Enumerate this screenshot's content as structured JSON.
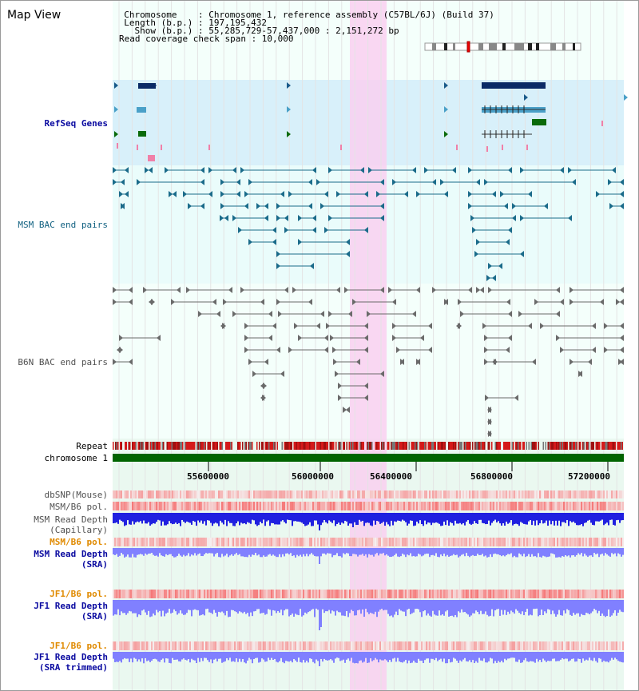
{
  "header": {
    "title": "Map View",
    "info_lines": [
      "  Chromosome    : Chromosome 1, reference assembly (C57BL/6J) (Build 37)",
      "  Length (b.p.) : 197,195,432",
      "    Show (b.p.) : 55,285,729-57,437,000 : 2,151,272 bp",
      "Read coverage check span : 10,000"
    ]
  },
  "tracks": {
    "refseq": "RefSeq Genes",
    "msm_bac": "MSM BAC end pairs",
    "b6n_bac": "B6N BAC end pairs",
    "repeat": "Repeat",
    "chromosome": "chromosome 1",
    "dbsnp": "dbSNP(Mouse)",
    "msm_b6_pol": "MSM/B6 pol.",
    "msm_depth_cap_1": "MSM Read Depth",
    "msm_depth_cap_2": "(Capillary)",
    "msm_b6_pol_2": "MSM/B6 pol.",
    "msm_depth_sra_1": "MSM Read Depth",
    "msm_depth_sra_2": "(SRA)",
    "jf1_pol_1": "JF1/B6 pol.",
    "jf1_depth_sra_1": "JF1 Read Depth",
    "jf1_depth_sra_2": "(SRA)",
    "jf1_pol_2": "JF1/B6 pol.",
    "jf1_depth_trim_1": "JF1 Read Depth",
    "jf1_depth_trim_2": "(SRA trimmed)"
  },
  "axis": {
    "ticks": [
      "55600000",
      "56000000",
      "56400000",
      "56800000",
      "57200000"
    ]
  },
  "colors": {
    "highlight": "#f9d0f0",
    "refseq_bg": "#d8f0fa",
    "lower_bg": "#eafff8",
    "msm": "#1a6b8a",
    "b6n": "#6a6a6a",
    "chromosome": "#006400",
    "depth": "#2020e0",
    "depth_light": "#8080ff"
  }
}
